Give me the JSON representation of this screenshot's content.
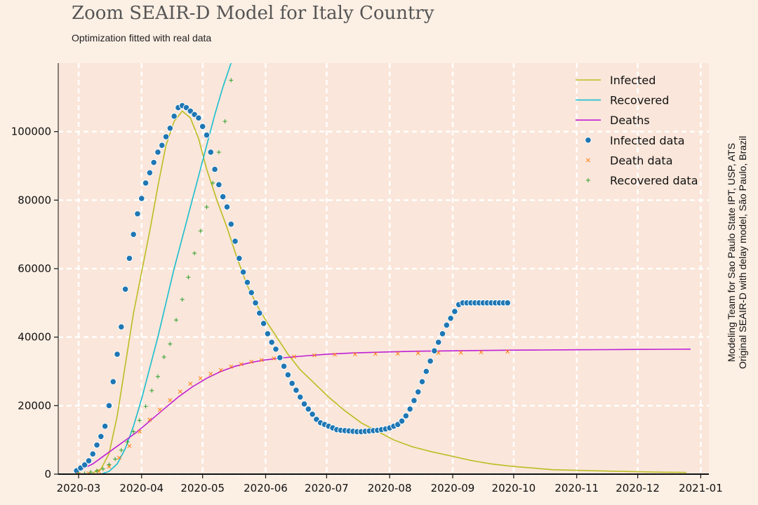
{
  "header": {
    "title": "Zoom SEAIR-D Model for Italy Country",
    "subtitle": "Optimization fitted with real data"
  },
  "credits": {
    "line1": "Modeling Team for Sao Paulo State IPT, USP, ATS",
    "line2": "Original SEAIR-D with delay model, São Paulo, Brazil"
  },
  "colors": {
    "background": "#fcefe4",
    "plot_background": "#fae6da",
    "infected": "#bcbd22",
    "recovered": "#17becf",
    "deaths": "#bf1fd6",
    "infected_data": "#1f77b4",
    "death_data": "#ff7f0e",
    "recovered_data": "#2ca02c"
  },
  "chart_data": {
    "type": "line",
    "title": "Zoom SEAIR-D Model for Italy Country",
    "subtitle": "Optimization fitted with real data",
    "xlabel": "",
    "ylabel": "",
    "x_type": "date",
    "xlim": [
      "2020-02-20",
      "2021-01-05"
    ],
    "ylim": [
      0,
      120000
    ],
    "x_tick_labels": [
      "2020-03",
      "2020-04",
      "2020-05",
      "2020-06",
      "2020-07",
      "2020-08",
      "2020-09",
      "2020-10",
      "2020-11",
      "2020-12",
      "2021-01"
    ],
    "y_ticks": [
      0,
      20000,
      40000,
      60000,
      80000,
      100000
    ],
    "grid": true,
    "legend_position": "top-right",
    "series": [
      {
        "name": "Infected",
        "kind": "line",
        "color": "#bcbd22",
        "x": [
          "2020-03-08",
          "2020-03-12",
          "2020-03-16",
          "2020-03-20",
          "2020-03-24",
          "2020-03-28",
          "2020-04-01",
          "2020-04-05",
          "2020-04-09",
          "2020-04-13",
          "2020-04-17",
          "2020-04-21",
          "2020-04-25",
          "2020-04-29",
          "2020-05-03",
          "2020-05-08",
          "2020-05-13",
          "2020-05-18",
          "2020-05-23",
          "2020-05-28",
          "2020-06-02",
          "2020-06-07",
          "2020-06-12",
          "2020-06-18",
          "2020-06-25",
          "2020-07-02",
          "2020-07-10",
          "2020-07-18",
          "2020-07-26",
          "2020-08-03",
          "2020-08-12",
          "2020-08-22",
          "2020-09-01",
          "2020-09-10",
          "2020-09-20",
          "2020-09-30",
          "2020-10-10",
          "2020-10-20",
          "2020-11-01",
          "2020-11-15",
          "2020-12-01",
          "2020-12-15",
          "2020-12-25"
        ],
        "y": [
          300,
          1500,
          6000,
          17000,
          32000,
          47000,
          59000,
          71000,
          84000,
          96000,
          103000,
          106000,
          104000,
          98000,
          89000,
          80000,
          72000,
          63000,
          55000,
          49000,
          44000,
          39500,
          35000,
          30500,
          26500,
          22500,
          18500,
          15000,
          12500,
          10000,
          8000,
          6500,
          5200,
          4000,
          3000,
          2300,
          1800,
          1300,
          1100,
          900,
          700,
          550,
          500
        ]
      },
      {
        "name": "Recovered",
        "kind": "line",
        "color": "#17becf",
        "x": [
          "2020-03-12",
          "2020-03-16",
          "2020-03-20",
          "2020-03-24",
          "2020-03-28",
          "2020-04-01",
          "2020-04-05",
          "2020-04-09",
          "2020-04-13",
          "2020-04-17",
          "2020-04-21",
          "2020-04-25",
          "2020-04-29",
          "2020-05-03",
          "2020-05-07",
          "2020-05-11",
          "2020-05-15"
        ],
        "y": [
          0,
          800,
          3000,
          7500,
          14000,
          22000,
          31000,
          40000,
          50000,
          60000,
          69000,
          78000,
          87000,
          96000,
          105000,
          113000,
          120000
        ]
      },
      {
        "name": "Deaths",
        "kind": "line",
        "color": "#bf1fd6",
        "x": [
          "2020-03-01",
          "2020-03-08",
          "2020-03-15",
          "2020-03-22",
          "2020-03-29",
          "2020-04-05",
          "2020-04-12",
          "2020-04-19",
          "2020-04-26",
          "2020-05-03",
          "2020-05-10",
          "2020-05-17",
          "2020-05-24",
          "2020-05-31",
          "2020-06-10",
          "2020-06-20",
          "2020-07-01",
          "2020-07-15",
          "2020-08-01",
          "2020-08-15",
          "2020-09-01",
          "2020-09-15",
          "2020-10-01",
          "2020-10-15",
          "2020-11-01",
          "2020-11-15",
          "2020-12-01",
          "2020-12-15",
          "2020-12-27"
        ],
        "y": [
          1000,
          3000,
          6000,
          9000,
          12000,
          15500,
          19000,
          22500,
          25500,
          28000,
          30000,
          31500,
          32500,
          33300,
          34000,
          34500,
          35000,
          35400,
          35700,
          35900,
          36000,
          36100,
          36200,
          36250,
          36300,
          36350,
          36400,
          36450,
          36500
        ]
      },
      {
        "name": "Infected data",
        "kind": "scatter",
        "marker": "circle",
        "color": "#1f77b4",
        "x": [
          "2020-02-29",
          "2020-03-02",
          "2020-03-04",
          "2020-03-06",
          "2020-03-08",
          "2020-03-10",
          "2020-03-12",
          "2020-03-14",
          "2020-03-16",
          "2020-03-18",
          "2020-03-20",
          "2020-03-22",
          "2020-03-24",
          "2020-03-26",
          "2020-03-28",
          "2020-03-30",
          "2020-04-01",
          "2020-04-03",
          "2020-04-05",
          "2020-04-07",
          "2020-04-09",
          "2020-04-11",
          "2020-04-13",
          "2020-04-15",
          "2020-04-17",
          "2020-04-19",
          "2020-04-21",
          "2020-04-23",
          "2020-04-25",
          "2020-04-27",
          "2020-04-29",
          "2020-05-01",
          "2020-05-03",
          "2020-05-05",
          "2020-05-07",
          "2020-05-09",
          "2020-05-11",
          "2020-05-13",
          "2020-05-15",
          "2020-05-17",
          "2020-05-19",
          "2020-05-21",
          "2020-05-23",
          "2020-05-25",
          "2020-05-27",
          "2020-05-29",
          "2020-05-31",
          "2020-06-02",
          "2020-06-04",
          "2020-06-06",
          "2020-06-08",
          "2020-06-10",
          "2020-06-12",
          "2020-06-14",
          "2020-06-16",
          "2020-06-18",
          "2020-06-20",
          "2020-06-22",
          "2020-06-24",
          "2020-06-26",
          "2020-06-28",
          "2020-06-30",
          "2020-07-02",
          "2020-07-04",
          "2020-07-06",
          "2020-07-08",
          "2020-07-10",
          "2020-07-12",
          "2020-07-14",
          "2020-07-16",
          "2020-07-18",
          "2020-07-20",
          "2020-07-22",
          "2020-07-24",
          "2020-07-26",
          "2020-07-28",
          "2020-07-30",
          "2020-08-01",
          "2020-08-03",
          "2020-08-05",
          "2020-08-07",
          "2020-08-09",
          "2020-08-11",
          "2020-08-13",
          "2020-08-15",
          "2020-08-17",
          "2020-08-19",
          "2020-08-21",
          "2020-08-23",
          "2020-08-25",
          "2020-08-27",
          "2020-08-29",
          "2020-08-31",
          "2020-09-02",
          "2020-09-04",
          "2020-09-06",
          "2020-09-08",
          "2020-09-10",
          "2020-09-12",
          "2020-09-14",
          "2020-09-16",
          "2020-09-18",
          "2020-09-20",
          "2020-09-22",
          "2020-09-24",
          "2020-09-26",
          "2020-09-28"
        ],
        "y": [
          1000,
          1800,
          2700,
          3900,
          5900,
          8500,
          11000,
          14000,
          20000,
          27000,
          35000,
          43000,
          54000,
          63000,
          70000,
          76000,
          80500,
          85000,
          88000,
          91000,
          94000,
          96000,
          98500,
          101000,
          104500,
          107000,
          107600,
          107000,
          106000,
          105000,
          104000,
          101500,
          99000,
          94000,
          89000,
          84500,
          81000,
          78000,
          73000,
          68000,
          63000,
          59000,
          56000,
          53000,
          50000,
          47000,
          44000,
          41000,
          38500,
          36500,
          34000,
          31500,
          29000,
          26500,
          24500,
          22500,
          20500,
          19000,
          17500,
          16000,
          15000,
          14500,
          14000,
          13500,
          13000,
          12800,
          12700,
          12600,
          12500,
          12400,
          12400,
          12500,
          12600,
          12700,
          12800,
          13000,
          13200,
          13500,
          14000,
          14500,
          15500,
          17000,
          19000,
          21500,
          24000,
          27000,
          30000,
          33000,
          36000,
          38500,
          41000,
          43500,
          45500,
          47500,
          49500,
          50000,
          50000,
          50000,
          50000,
          50000,
          50000,
          50000,
          50000,
          50000,
          50000,
          50000,
          50000
        ]
      },
      {
        "name": "Death data",
        "kind": "scatter",
        "marker": "x",
        "color": "#ff7f0e",
        "x": [
          "2020-03-01",
          "2020-03-06",
          "2020-03-11",
          "2020-03-16",
          "2020-03-21",
          "2020-03-26",
          "2020-03-31",
          "2020-04-05",
          "2020-04-10",
          "2020-04-15",
          "2020-04-20",
          "2020-04-25",
          "2020-04-30",
          "2020-05-05",
          "2020-05-10",
          "2020-05-15",
          "2020-05-20",
          "2020-05-25",
          "2020-05-30",
          "2020-06-05",
          "2020-06-15",
          "2020-06-25",
          "2020-07-05",
          "2020-07-15",
          "2020-07-25",
          "2020-08-05",
          "2020-08-15",
          "2020-08-25",
          "2020-09-05",
          "2020-09-15",
          "2020-09-28"
        ],
        "y": [
          30,
          200,
          800,
          2200,
          4800,
          8200,
          12400,
          15900,
          18800,
          21600,
          24100,
          26400,
          28000,
          29300,
          30400,
          31400,
          32100,
          32800,
          33300,
          33800,
          34300,
          34700,
          34900,
          35000,
          35100,
          35200,
          35300,
          35400,
          35500,
          35600,
          35800
        ]
      },
      {
        "name": "Recovered data",
        "kind": "scatter",
        "marker": "plus",
        "color": "#2ca02c",
        "x": [
          "2020-03-01",
          "2020-03-04",
          "2020-03-07",
          "2020-03-10",
          "2020-03-13",
          "2020-03-16",
          "2020-03-19",
          "2020-03-22",
          "2020-03-25",
          "2020-03-28",
          "2020-03-31",
          "2020-04-03",
          "2020-04-06",
          "2020-04-09",
          "2020-04-12",
          "2020-04-15",
          "2020-04-18",
          "2020-04-21",
          "2020-04-24",
          "2020-04-27",
          "2020-04-30",
          "2020-05-03",
          "2020-05-06",
          "2020-05-09",
          "2020-05-12",
          "2020-05-15"
        ],
        "y": [
          50,
          150,
          600,
          1000,
          1500,
          2800,
          4400,
          7000,
          9400,
          12400,
          15700,
          19800,
          24400,
          28500,
          34200,
          38000,
          45000,
          51000,
          57500,
          64500,
          71000,
          78000,
          85000,
          94000,
          103000,
          115000
        ]
      }
    ]
  }
}
